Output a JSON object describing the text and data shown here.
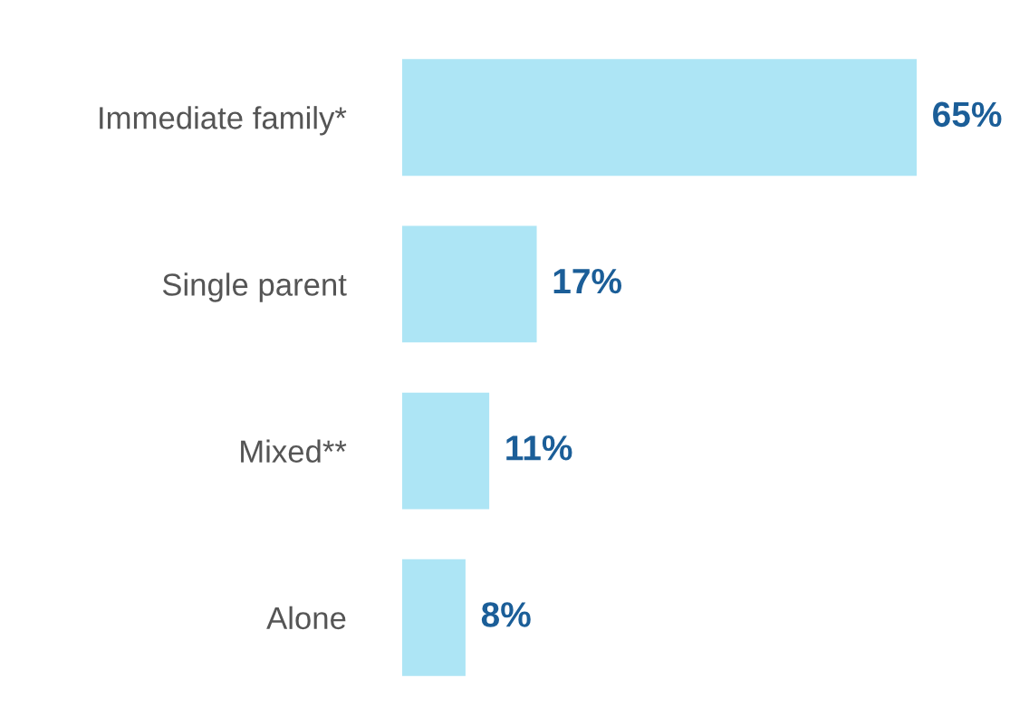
{
  "chart_data": {
    "type": "bar",
    "orientation": "horizontal",
    "categories": [
      "Immediate family*",
      "Single parent",
      "Mixed**",
      "Alone"
    ],
    "values": [
      65,
      17,
      11,
      8
    ],
    "value_labels": [
      "65%",
      "17%",
      "11%",
      "8%"
    ],
    "color": "#ade5f5"
  }
}
